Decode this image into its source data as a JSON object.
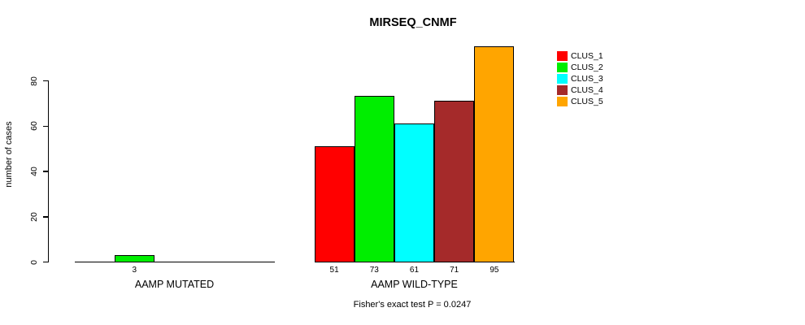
{
  "chart_data": {
    "type": "bar",
    "title": "MIRSEQ_CNMF",
    "ylabel": "number of cases",
    "xlabel": "",
    "footer": "Fisher's exact test P = 0.0247",
    "categories": [
      "AAMP MUTATED",
      "AAMP WILD-TYPE"
    ],
    "series": [
      {
        "name": "CLUS_1",
        "color": "#FF0000",
        "values": [
          0,
          51
        ]
      },
      {
        "name": "CLUS_2",
        "color": "#00EE00",
        "values": [
          3,
          73
        ]
      },
      {
        "name": "CLUS_3",
        "color": "#00FFFF",
        "values": [
          0,
          61
        ]
      },
      {
        "name": "CLUS_4",
        "color": "#A52A2A",
        "values": [
          0,
          71
        ]
      },
      {
        "name": "CLUS_5",
        "color": "#FFA500",
        "values": [
          0,
          95
        ]
      }
    ],
    "bar_value_labels": {
      "AAMP MUTATED": [
        "3"
      ],
      "AAMP WILD-TYPE": [
        "51",
        "73",
        "61",
        "71",
        "95"
      ]
    },
    "yticks": [
      0,
      20,
      40,
      60,
      80
    ],
    "ylim": [
      0,
      95
    ],
    "grid": false,
    "legend_position": "top-right",
    "legend_entries": [
      "CLUS_1",
      "CLUS_2",
      "CLUS_3",
      "CLUS_4",
      "CLUS_5"
    ],
    "axis_color": "#000000",
    "background_color": "#FFFFFF"
  }
}
